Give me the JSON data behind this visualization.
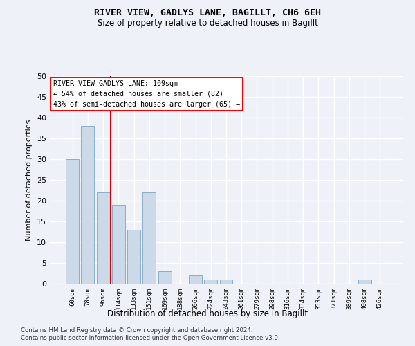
{
  "title": "RIVER VIEW, GADLYS LANE, BAGILLT, CH6 6EH",
  "subtitle": "Size of property relative to detached houses in Bagillt",
  "xlabel": "Distribution of detached houses by size in Bagillt",
  "ylabel": "Number of detached properties",
  "bar_color": "#ccd9e8",
  "bar_edge_color": "#8aaec8",
  "background_color": "#eef2f8",
  "grid_color": "#ffffff",
  "categories": [
    "60sqm",
    "78sqm",
    "96sqm",
    "114sqm",
    "133sqm",
    "151sqm",
    "169sqm",
    "188sqm",
    "206sqm",
    "224sqm",
    "243sqm",
    "261sqm",
    "279sqm",
    "298sqm",
    "316sqm",
    "334sqm",
    "353sqm",
    "371sqm",
    "389sqm",
    "408sqm",
    "426sqm"
  ],
  "values": [
    30,
    38,
    22,
    19,
    13,
    22,
    3,
    0,
    2,
    1,
    1,
    0,
    0,
    0,
    0,
    0,
    0,
    0,
    0,
    1,
    0
  ],
  "ylim": [
    0,
    50
  ],
  "yticks": [
    0,
    5,
    10,
    15,
    20,
    25,
    30,
    35,
    40,
    45,
    50
  ],
  "vline_x": 2.5,
  "vline_color": "#cc0000",
  "annotation_box_text": "RIVER VIEW GADLYS LANE: 109sqm\n← 54% of detached houses are smaller (82)\n43% of semi-detached houses are larger (65) →",
  "footnote1": "Contains HM Land Registry data © Crown copyright and database right 2024.",
  "footnote2": "Contains public sector information licensed under the Open Government Licence v3.0."
}
